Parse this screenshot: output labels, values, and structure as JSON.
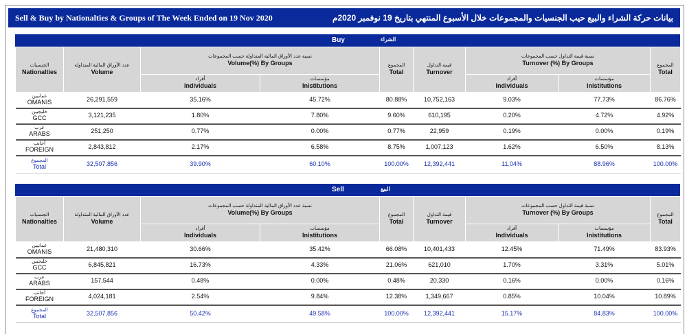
{
  "title": {
    "en": "Sell & Buy by Nationalties & Groups of The Week Ended on 19 Nov 2020",
    "ar": "بيانات حركة الشراء والبيع حيب الجنسيات والمجموعات خلال الأسبوع المنتهي بتاريخ 19 نوفمبر 2020م"
  },
  "headers": {
    "nat_ar": "الجنسيات",
    "nat_en": "Nationalties",
    "vol_ar": "عدد الأوراق المالية المتداولة",
    "vol_en": "Volume",
    "volg_ar": "نسبة عدد الأوراق المالية المتداولة حسب المجموعات",
    "volg_en": "Volume(%) By Groups",
    "tot_ar": "المجموع",
    "tot_en": "Total",
    "turn_ar": "قيمة التداول",
    "turn_en": "Turnover",
    "turng_ar": "نسبة قيمة التداول حسب المجموعات",
    "turng_en": "Turnover (%) By Groups",
    "ind_ar": "أفراد",
    "ind_en": "Individuals",
    "ins_ar": "مؤسسات",
    "ins_en": "Inistitutions"
  },
  "sections": [
    {
      "label_en": "Buy",
      "label_ar": "الشراء",
      "rows": [
        {
          "ar": "عمانيين",
          "en": "OMANIS",
          "v": [
            "26,291,559",
            "35.16%",
            "45.72%",
            "80.88%",
            "10,752,163",
            "9.03%",
            "77.73%",
            "86.76%"
          ]
        },
        {
          "ar": "خليجيين",
          "en": "GCC",
          "v": [
            "3,121,235",
            "1.80%",
            "7.80%",
            "9.60%",
            "610,195",
            "0.20%",
            "4.72%",
            "4.92%"
          ]
        },
        {
          "ar": "عرب",
          "en": "ARABS",
          "v": [
            "251,250",
            "0.77%",
            "0.00%",
            "0.77%",
            "22,959",
            "0.19%",
            "0.00%",
            "0.19%"
          ]
        },
        {
          "ar": "أجانب",
          "en": "FOREIGN",
          "v": [
            "2,843,812",
            "2.17%",
            "6.58%",
            "8.75%",
            "1,007,123",
            "1.62%",
            "6.50%",
            "8.13%"
          ]
        },
        {
          "ar": "المجموع",
          "en": "Total",
          "v": [
            "32,507,856",
            "39.90%",
            "60.10%",
            "100.00%",
            "12,392,441",
            "11.04%",
            "88.96%",
            "100.00%"
          ]
        }
      ]
    },
    {
      "label_en": "Sell",
      "label_ar": "البيع",
      "rows": [
        {
          "ar": "عمانيين",
          "en": "OMANIS",
          "v": [
            "21,480,310",
            "30.66%",
            "35.42%",
            "66.08%",
            "10,401,433",
            "12.45%",
            "71.49%",
            "83.93%"
          ]
        },
        {
          "ar": "خليجيين",
          "en": "GCC",
          "v": [
            "6,845,821",
            "16.73%",
            "4.33%",
            "21.06%",
            "621,010",
            "1.70%",
            "3.31%",
            "5.01%"
          ]
        },
        {
          "ar": "عرب",
          "en": "ARABS",
          "v": [
            "157,544",
            "0.48%",
            "0.00%",
            "0.48%",
            "20,330",
            "0.16%",
            "0.00%",
            "0.16%"
          ]
        },
        {
          "ar": "أجانب",
          "en": "FOREIGN",
          "v": [
            "4,024,181",
            "2.54%",
            "9.84%",
            "12.38%",
            "1,349,667",
            "0.85%",
            "10.04%",
            "10.89%"
          ]
        },
        {
          "ar": "المجموع",
          "en": "Total",
          "v": [
            "32,507,856",
            "50.42%",
            "49.58%",
            "100.00%",
            "12,392,441",
            "15.17%",
            "84.83%",
            "100.00%"
          ]
        }
      ]
    }
  ]
}
